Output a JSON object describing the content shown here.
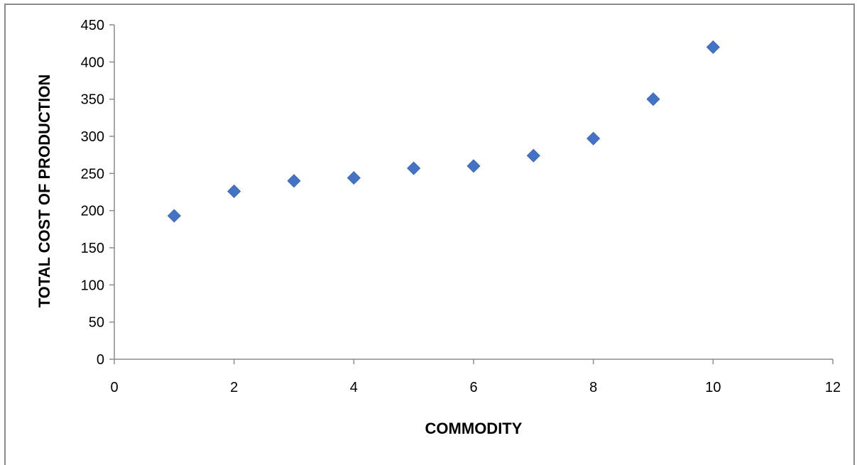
{
  "chart_data": {
    "type": "scatter",
    "title": "",
    "xlabel": "COMMODITY",
    "ylabel": "TOTAL COST OF PRODUCTION",
    "xlim": [
      0,
      12
    ],
    "ylim": [
      0,
      450
    ],
    "xticks": [
      0,
      2,
      4,
      6,
      8,
      10,
      12
    ],
    "yticks": [
      0,
      50,
      100,
      150,
      200,
      250,
      300,
      350,
      400,
      450
    ],
    "grid": false,
    "legend": "none",
    "marker": "diamond",
    "marker_color": "#4472C4",
    "axis_color": "#8c8c8c",
    "series": [
      {
        "x": [
          1,
          2,
          3,
          4,
          5,
          6,
          7,
          8,
          9,
          10
        ],
        "y": [
          193,
          226,
          240,
          244,
          257,
          260,
          274,
          297,
          350,
          420
        ]
      }
    ]
  }
}
